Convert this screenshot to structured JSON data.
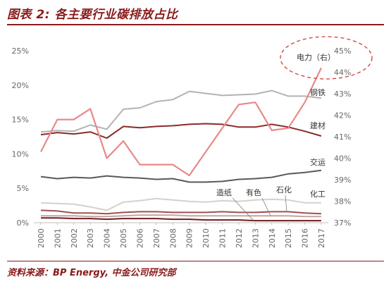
{
  "figure": {
    "title": "图表 2:  各主要行业碳排放占比",
    "source": "资料来源：BP Energy,  中金公司研究部"
  },
  "chart_data": {
    "type": "line",
    "title": "",
    "xlabel": "",
    "ylabel": "",
    "x": [
      "2000",
      "2001",
      "2002",
      "2003",
      "2004",
      "2005",
      "2006",
      "2007",
      "2008",
      "2009",
      "2010",
      "2011",
      "2012",
      "2013",
      "2014",
      "2015",
      "2016",
      "2017"
    ],
    "ylim": [
      0,
      25
    ],
    "y_ticks": [
      "0%",
      "5%",
      "10%",
      "15%",
      "20%",
      "25%"
    ],
    "y2lim": [
      37,
      45
    ],
    "y2_ticks": [
      "37%",
      "38%",
      "39%",
      "40%",
      "41%",
      "42%",
      "43%",
      "44%",
      "45%"
    ],
    "grid": false,
    "annotation": {
      "shape": "dashed-ellipse",
      "target": "电力（右）"
    },
    "series": [
      {
        "name": "电力（右）",
        "axis": "right",
        "color": "#e8888a",
        "values": [
          40.3,
          41.8,
          41.8,
          42.3,
          40.0,
          40.8,
          39.7,
          39.7,
          39.7,
          39.2,
          40.3,
          41.4,
          42.5,
          42.6,
          41.3,
          41.4,
          42.6,
          44.2
        ]
      },
      {
        "name": "钢铁",
        "axis": "left",
        "color": "#b3b3b3",
        "values": [
          13.2,
          13.4,
          13.3,
          14.2,
          13.6,
          16.5,
          16.7,
          17.6,
          17.9,
          19.1,
          18.8,
          18.5,
          18.6,
          18.7,
          19.2,
          18.4,
          18.4,
          18.1
        ]
      },
      {
        "name": "建材",
        "axis": "left",
        "color": "#8b2a2a",
        "values": [
          12.8,
          13.1,
          12.9,
          13.2,
          12.3,
          14.0,
          13.8,
          14.0,
          14.1,
          14.3,
          14.4,
          14.3,
          13.9,
          13.9,
          14.3,
          13.9,
          13.3,
          12.6
        ]
      },
      {
        "name": "交运",
        "axis": "left",
        "color": "#595959",
        "values": [
          6.7,
          6.4,
          6.6,
          6.5,
          6.8,
          6.6,
          6.5,
          6.3,
          6.4,
          5.9,
          5.9,
          6.0,
          6.3,
          6.4,
          6.6,
          7.1,
          7.3,
          7.6
        ]
      },
      {
        "name": "化工",
        "axis": "left",
        "color": "#d9d0c9",
        "values": [
          2.9,
          2.8,
          2.7,
          2.3,
          1.8,
          3.0,
          3.2,
          3.5,
          3.3,
          3.1,
          3.0,
          3.2,
          3.1,
          3.3,
          3.4,
          3.3,
          2.9,
          2.9
        ]
      },
      {
        "name": "石化",
        "axis": "left",
        "color": "#a05050",
        "values": [
          1.8,
          1.7,
          1.4,
          1.4,
          1.3,
          1.5,
          1.6,
          1.6,
          1.5,
          1.5,
          1.5,
          1.6,
          1.5,
          1.5,
          1.6,
          1.6,
          1.4,
          1.3
        ]
      },
      {
        "name": "有色",
        "axis": "left",
        "color": "#c4a4a4",
        "values": [
          1.0,
          1.0,
          1.0,
          0.9,
          0.9,
          1.0,
          1.1,
          1.1,
          1.1,
          1.0,
          1.0,
          1.0,
          1.0,
          1.0,
          1.0,
          1.0,
          0.9,
          0.9
        ]
      },
      {
        "name": "造纸",
        "axis": "left",
        "color": "#6e1f1f",
        "values": [
          0.7,
          0.7,
          0.6,
          0.6,
          0.5,
          0.6,
          0.6,
          0.6,
          0.5,
          0.5,
          0.4,
          0.4,
          0.4,
          0.3,
          0.3,
          0.3,
          0.3,
          0.3
        ]
      }
    ]
  }
}
